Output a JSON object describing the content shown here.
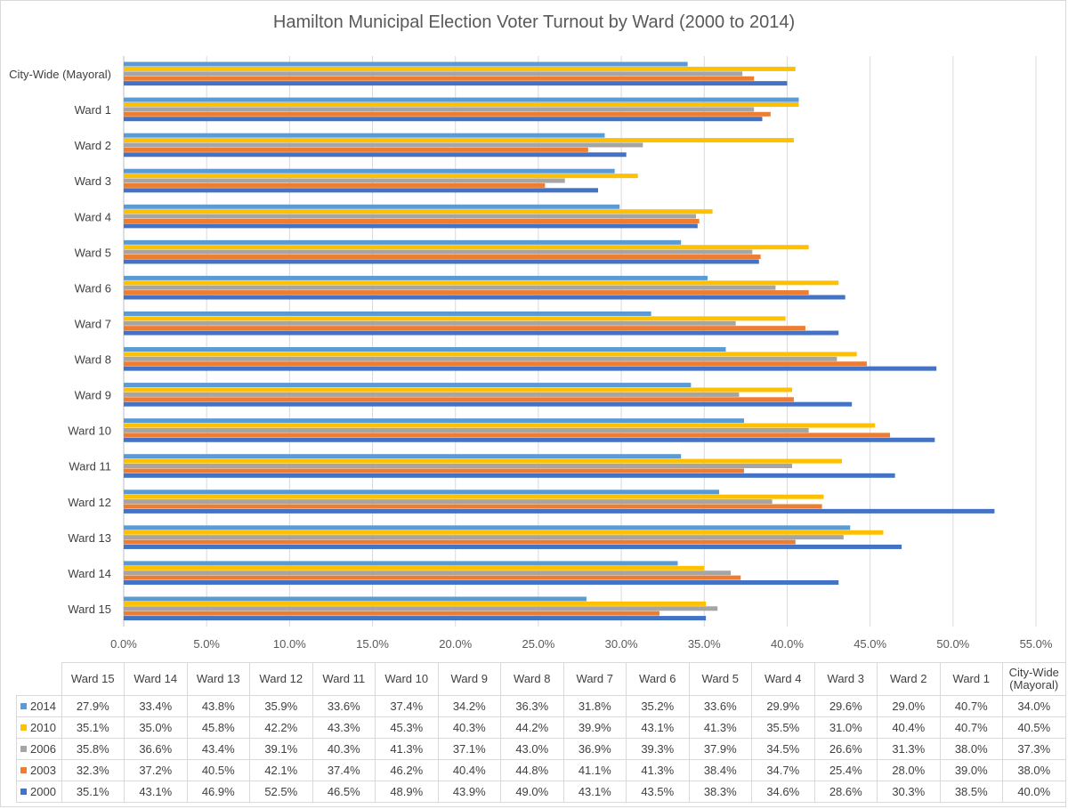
{
  "chart_data": {
    "type": "bar",
    "orientation": "horizontal",
    "title": "Hamilton Municipal Election Voter Turnout by Ward (2000 to 2014)",
    "xlim": [
      0,
      55
    ],
    "x_ticks": [
      "0.0%",
      "5.0%",
      "10.0%",
      "15.0%",
      "20.0%",
      "25.0%",
      "30.0%",
      "35.0%",
      "40.0%",
      "45.0%",
      "50.0%",
      "55.0%"
    ],
    "grid": true,
    "legend": "data-table",
    "categories": [
      "City-Wide (Mayoral)",
      "Ward 1",
      "Ward 2",
      "Ward 3",
      "Ward 4",
      "Ward 5",
      "Ward 6",
      "Ward 7",
      "Ward 8",
      "Ward 9",
      "Ward 10",
      "Ward 11",
      "Ward 12",
      "Ward 13",
      "Ward 14",
      "Ward 15"
    ],
    "series": [
      {
        "name": "2014",
        "color": "#5b9bd5",
        "values": [
          34.0,
          40.7,
          29.0,
          29.6,
          29.9,
          33.6,
          35.2,
          31.8,
          36.3,
          34.2,
          37.4,
          33.6,
          35.9,
          43.8,
          33.4,
          27.9
        ]
      },
      {
        "name": "2010",
        "color": "#ffc000",
        "values": [
          40.5,
          40.7,
          40.4,
          31.0,
          35.5,
          41.3,
          43.1,
          39.9,
          44.2,
          40.3,
          45.3,
          43.3,
          42.2,
          45.8,
          35.0,
          35.1
        ]
      },
      {
        "name": "2006",
        "color": "#a5a5a5",
        "values": [
          37.3,
          38.0,
          31.3,
          26.6,
          34.5,
          37.9,
          39.3,
          36.9,
          43.0,
          37.1,
          41.3,
          40.3,
          39.1,
          43.4,
          36.6,
          35.8
        ]
      },
      {
        "name": "2003",
        "color": "#ed7d31",
        "values": [
          38.0,
          39.0,
          28.0,
          25.4,
          34.7,
          38.4,
          41.3,
          41.1,
          44.8,
          40.4,
          46.2,
          37.4,
          42.1,
          40.5,
          37.2,
          32.3
        ]
      },
      {
        "name": "2000",
        "color": "#4472c4",
        "values": [
          40.0,
          38.5,
          30.3,
          28.6,
          34.6,
          38.3,
          43.5,
          43.1,
          49.0,
          43.9,
          48.9,
          46.5,
          52.5,
          46.9,
          43.1,
          35.1
        ]
      }
    ]
  },
  "table": {
    "columns": [
      "Ward 15",
      "Ward 14",
      "Ward 13",
      "Ward 12",
      "Ward 11",
      "Ward 10",
      "Ward 9",
      "Ward 8",
      "Ward 7",
      "Ward 6",
      "Ward 5",
      "Ward 4",
      "Ward 3",
      "Ward 2",
      "Ward 1",
      "City-Wide (Mayoral)"
    ],
    "rows": [
      {
        "label": "2014",
        "color": "#5b9bd5",
        "cells": [
          "27.9%",
          "33.4%",
          "43.8%",
          "35.9%",
          "33.6%",
          "37.4%",
          "34.2%",
          "36.3%",
          "31.8%",
          "35.2%",
          "33.6%",
          "29.9%",
          "29.6%",
          "29.0%",
          "40.7%",
          "34.0%"
        ]
      },
      {
        "label": "2010",
        "color": "#ffc000",
        "cells": [
          "35.1%",
          "35.0%",
          "45.8%",
          "42.2%",
          "43.3%",
          "45.3%",
          "40.3%",
          "44.2%",
          "39.9%",
          "43.1%",
          "41.3%",
          "35.5%",
          "31.0%",
          "40.4%",
          "40.7%",
          "40.5%"
        ]
      },
      {
        "label": "2006",
        "color": "#a5a5a5",
        "cells": [
          "35.8%",
          "36.6%",
          "43.4%",
          "39.1%",
          "40.3%",
          "41.3%",
          "37.1%",
          "43.0%",
          "36.9%",
          "39.3%",
          "37.9%",
          "34.5%",
          "26.6%",
          "31.3%",
          "38.0%",
          "37.3%"
        ]
      },
      {
        "label": "2003",
        "color": "#ed7d31",
        "cells": [
          "32.3%",
          "37.2%",
          "40.5%",
          "42.1%",
          "37.4%",
          "46.2%",
          "40.4%",
          "44.8%",
          "41.1%",
          "41.3%",
          "38.4%",
          "34.7%",
          "25.4%",
          "28.0%",
          "39.0%",
          "38.0%"
        ]
      },
      {
        "label": "2000",
        "color": "#4472c4",
        "cells": [
          "35.1%",
          "43.1%",
          "46.9%",
          "52.5%",
          "46.5%",
          "48.9%",
          "43.9%",
          "49.0%",
          "43.1%",
          "43.5%",
          "38.3%",
          "34.6%",
          "28.6%",
          "30.3%",
          "38.5%",
          "40.0%"
        ]
      }
    ]
  }
}
